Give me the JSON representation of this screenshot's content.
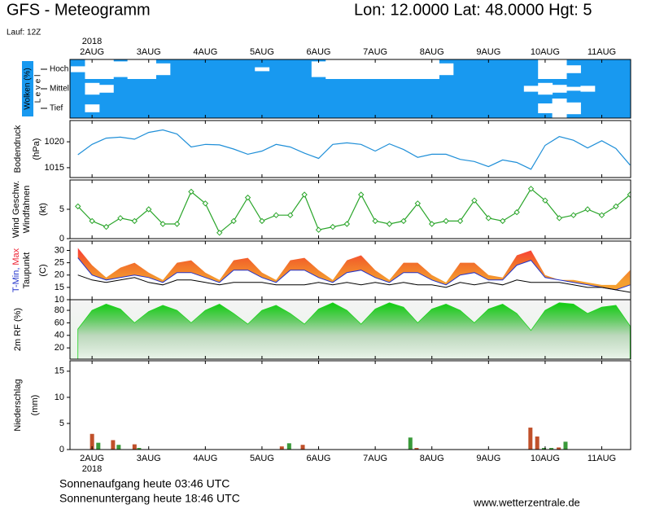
{
  "header": {
    "title": "GFS - Meteogramm",
    "location": "Lon: 12.0000 Lat: 48.0000 Hgt: 5",
    "run": "Lauf: 12Z",
    "year": "2018"
  },
  "footer": {
    "sunrise": "Sonnenaufgang heute 03:46 UTC",
    "sunset": "Sonnenuntergang heute 18:46 UTC",
    "source": "www.wetterzentrale.de"
  },
  "chart_data": [
    {
      "type": "clouds",
      "title": "Wolken (%)",
      "ylabel": "L e v e l",
      "color": "#1899f0",
      "xlim": [
        1.61,
        11.51
      ],
      "xticks": [
        {
          "value": 2,
          "label": "2AUG"
        },
        {
          "value": 3,
          "label": "3AUG"
        },
        {
          "value": 4,
          "label": "4AUG"
        },
        {
          "value": 5,
          "label": "5AUG"
        },
        {
          "value": 6,
          "label": "6AUG"
        },
        {
          "value": 7,
          "label": "7AUG"
        },
        {
          "value": 8,
          "label": "8AUG"
        },
        {
          "value": 9,
          "label": "9AUG"
        },
        {
          "value": 10,
          "label": "10AUG"
        },
        {
          "value": 11,
          "label": "11AUG"
        }
      ],
      "x": [
        1.75,
        2,
        2.25,
        2.5,
        2.75,
        3,
        3.25,
        3.5,
        3.75,
        4,
        4.25,
        4.5,
        4.75,
        5,
        5.25,
        5.5,
        5.75,
        6,
        6.25,
        6.5,
        6.75,
        7,
        7.25,
        7.5,
        7.75,
        8,
        8.25,
        8.5,
        8.75,
        9,
        9.25,
        9.5,
        9.75,
        10,
        10.25,
        10.5,
        10.75,
        11,
        11.25,
        11.5
      ],
      "series": [
        {
          "name": "Hoch",
          "color": "#ffffff",
          "values": [
            30,
            100,
            100,
            80,
            100,
            100,
            60,
            0,
            0,
            0,
            0,
            0,
            0,
            20,
            0,
            0,
            0,
            80,
            100,
            100,
            100,
            100,
            100,
            100,
            100,
            100,
            60,
            0,
            0,
            0,
            0,
            0,
            0,
            100,
            100,
            40,
            0,
            0,
            0,
            0
          ]
        },
        {
          "name": "Mittel",
          "color": "#ffffff",
          "values": [
            0,
            60,
            40,
            0,
            0,
            0,
            0,
            0,
            0,
            0,
            0,
            0,
            0,
            0,
            0,
            0,
            0,
            0,
            0,
            0,
            0,
            0,
            0,
            0,
            0,
            0,
            0,
            0,
            0,
            0,
            0,
            0,
            30,
            60,
            40,
            20,
            30,
            0,
            0,
            0
          ]
        },
        {
          "name": "Tief",
          "color": "#ffffff",
          "values": [
            0,
            40,
            0,
            0,
            0,
            0,
            0,
            0,
            0,
            0,
            0,
            0,
            0,
            0,
            0,
            0,
            0,
            0,
            0,
            0,
            0,
            0,
            0,
            0,
            0,
            0,
            0,
            0,
            0,
            0,
            0,
            0,
            0,
            50,
            100,
            60,
            0,
            0,
            0,
            0
          ]
        }
      ]
    },
    {
      "type": "line",
      "title": "Bodendruck",
      "ylabel": "(hPa)",
      "xlim": [
        1.61,
        11.51
      ],
      "ylim": [
        1013.1,
        1024.1
      ],
      "yticks": [
        1015,
        1020
      ],
      "x": [
        1.75,
        2,
        2.25,
        2.5,
        2.75,
        3,
        3.25,
        3.5,
        3.75,
        4,
        4.25,
        4.5,
        4.75,
        5,
        5.25,
        5.5,
        5.75,
        6,
        6.25,
        6.5,
        6.75,
        7,
        7.25,
        7.5,
        7.75,
        8,
        8.25,
        8.5,
        8.75,
        9,
        9.25,
        9.5,
        9.75,
        10,
        10.25,
        10.5,
        10.75,
        11,
        11.25,
        11.5
      ],
      "series": [
        {
          "color": "#1f8fd8",
          "values": [
            1017.5,
            1019.5,
            1020.7,
            1020.9,
            1020.5,
            1021.8,
            1022.3,
            1021.5,
            1019,
            1019.5,
            1019.4,
            1018.6,
            1017.6,
            1018.2,
            1019.5,
            1019,
            1017.8,
            1016.8,
            1019.5,
            1019.8,
            1019.5,
            1018.2,
            1019.6,
            1018.5,
            1017,
            1017.6,
            1017.6,
            1016.6,
            1016.2,
            1015.2,
            1016.5,
            1016,
            1014.7,
            1019.3,
            1021,
            1020.3,
            1018.8,
            1020.2,
            1018.7,
            1015.5
          ]
        }
      ]
    },
    {
      "type": "linemarkers",
      "barbs_label": "Windfahnen",
      "ylabel": "(kt)",
      "xlim": [
        1.61,
        11.51
      ],
      "ylim": [
        0,
        10
      ],
      "yticks": [
        0,
        5
      ],
      "x": [
        1.75,
        2,
        2.25,
        2.5,
        2.75,
        3,
        3.25,
        3.5,
        3.75,
        4,
        4.25,
        4.5,
        4.75,
        5,
        5.25,
        5.5,
        5.75,
        6,
        6.25,
        6.5,
        6.75,
        7,
        7.25,
        7.5,
        7.75,
        8,
        8.25,
        8.5,
        8.75,
        9,
        9.25,
        9.5,
        9.75,
        10,
        10.25,
        10.5,
        10.75,
        11,
        11.25,
        11.5
      ],
      "series": [
        {
          "name": "Wind Geschw.",
          "color": "#2aa52a",
          "values": [
            5.5,
            3,
            2,
            3.5,
            3,
            5,
            2.5,
            2.5,
            8,
            6,
            1,
            3,
            7,
            3,
            4,
            4,
            7.5,
            1.5,
            2,
            2.5,
            7.5,
            3,
            2.5,
            3,
            6,
            2.5,
            3,
            3,
            6.5,
            3.5,
            3,
            4.5,
            8.5,
            6.5,
            3.5,
            4,
            5,
            4,
            5.5,
            7.5
          ]
        }
      ]
    },
    {
      "type": "band",
      "ylabel": "(C)",
      "xlim": [
        1.61,
        11.51
      ],
      "ylim": [
        10,
        33.8
      ],
      "yticks": [
        10,
        15,
        20,
        25,
        30
      ],
      "x": [
        1.75,
        2,
        2.25,
        2.5,
        2.75,
        3,
        3.25,
        3.5,
        3.75,
        4,
        4.25,
        4.5,
        4.75,
        5,
        5.25,
        5.5,
        5.75,
        6,
        6.25,
        6.5,
        6.75,
        7,
        7.25,
        7.5,
        7.75,
        8,
        8.25,
        8.5,
        8.75,
        9,
        9.25,
        9.5,
        9.75,
        10,
        10.25,
        10.5,
        10.75,
        11,
        11.25,
        11.5
      ],
      "series": [
        {
          "name": "T-Min,",
          "color": "#2233cc",
          "values": [
            27,
            20,
            18,
            19,
            20,
            19,
            17,
            21,
            21,
            19,
            17,
            22,
            22,
            19,
            17,
            22,
            22,
            19,
            17,
            21,
            22,
            19,
            17,
            21,
            21,
            18,
            16,
            20,
            21,
            18,
            18,
            24,
            26,
            19,
            18,
            17,
            16,
            15,
            14,
            16
          ]
        },
        {
          "name": "Max",
          "color": "#ee2233",
          "values": [
            31,
            24,
            19,
            23,
            25,
            21,
            18,
            25,
            26,
            21,
            18,
            26,
            27,
            21,
            18,
            26,
            27,
            22,
            18,
            26,
            28,
            22,
            18,
            25,
            25,
            20,
            17,
            25,
            25,
            20,
            19,
            28,
            30,
            20,
            18,
            18,
            17,
            16,
            16,
            22
          ]
        },
        {
          "name": "Taupunkt",
          "color": "#000000",
          "values": [
            20,
            18,
            17,
            18,
            19,
            17,
            16,
            18,
            18,
            17,
            16,
            17,
            17,
            17,
            16,
            16,
            16,
            17,
            16,
            17,
            16,
            17,
            16,
            17,
            16,
            16,
            15,
            17,
            16,
            17,
            16,
            18,
            17,
            17,
            17,
            16,
            15,
            15,
            14,
            13
          ]
        }
      ]
    },
    {
      "type": "area",
      "title": "2m RF (%)",
      "color": "#1ed21e",
      "xlim": [
        1.61,
        11.51
      ],
      "ylim": [
        2,
        97
      ],
      "yticks": [
        20,
        40,
        60,
        80
      ],
      "x": [
        1.75,
        2,
        2.25,
        2.5,
        2.75,
        3,
        3.25,
        3.5,
        3.75,
        4,
        4.25,
        4.5,
        4.75,
        5,
        5.25,
        5.5,
        5.75,
        6,
        6.25,
        6.5,
        6.75,
        7,
        7.25,
        7.5,
        7.75,
        8,
        8.25,
        8.5,
        8.75,
        9,
        9.25,
        9.5,
        9.75,
        10,
        10.25,
        10.5,
        10.75,
        11,
        11.25,
        11.5
      ],
      "values": [
        50,
        80,
        90,
        82,
        60,
        78,
        88,
        80,
        60,
        80,
        90,
        75,
        58,
        80,
        88,
        75,
        58,
        82,
        92,
        80,
        58,
        82,
        92,
        85,
        60,
        82,
        90,
        80,
        60,
        82,
        90,
        75,
        48,
        80,
        92,
        90,
        75,
        85,
        88,
        55
      ]
    },
    {
      "type": "bar",
      "title": "Niederschlag",
      "ylabel": "(mm)",
      "xlim": [
        1.61,
        11.51
      ],
      "ylim": [
        0,
        17
      ],
      "yticks": [
        0,
        5,
        10,
        15
      ],
      "xticks": [
        {
          "value": 2,
          "label": "2AUG"
        },
        {
          "value": 3,
          "label": "3AUG"
        },
        {
          "value": 4,
          "label": "4AUG"
        },
        {
          "value": 5,
          "label": "5AUG"
        },
        {
          "value": 6,
          "label": "6AUG"
        },
        {
          "value": 7,
          "label": "7AUG"
        },
        {
          "value": 8,
          "label": "8AUG"
        },
        {
          "value": 9,
          "label": "9AUG"
        },
        {
          "value": 10,
          "label": "10AUG"
        },
        {
          "value": 11,
          "label": "11AUG"
        }
      ],
      "x": [
        2,
        2.11,
        2.37,
        2.47,
        2.75,
        2.83,
        5.35,
        5.48,
        5.72,
        7.62,
        7.73,
        9.74,
        9.86,
        9.98,
        10.11,
        10.24,
        10.36
      ],
      "series": [
        {
          "color": "#c0502a",
          "values": [
            3.0,
            null,
            1.8,
            null,
            1.0,
            null,
            0.6,
            null,
            0.9,
            null,
            0.3,
            4.2,
            2.5,
            null,
            null,
            0.4,
            null
          ]
        },
        {
          "color": "#3a9a3a",
          "values": [
            null,
            1.3,
            null,
            0.9,
            null,
            0.3,
            null,
            1.2,
            null,
            2.3,
            null,
            null,
            null,
            0.3,
            0.3,
            null,
            1.5
          ]
        }
      ]
    }
  ]
}
